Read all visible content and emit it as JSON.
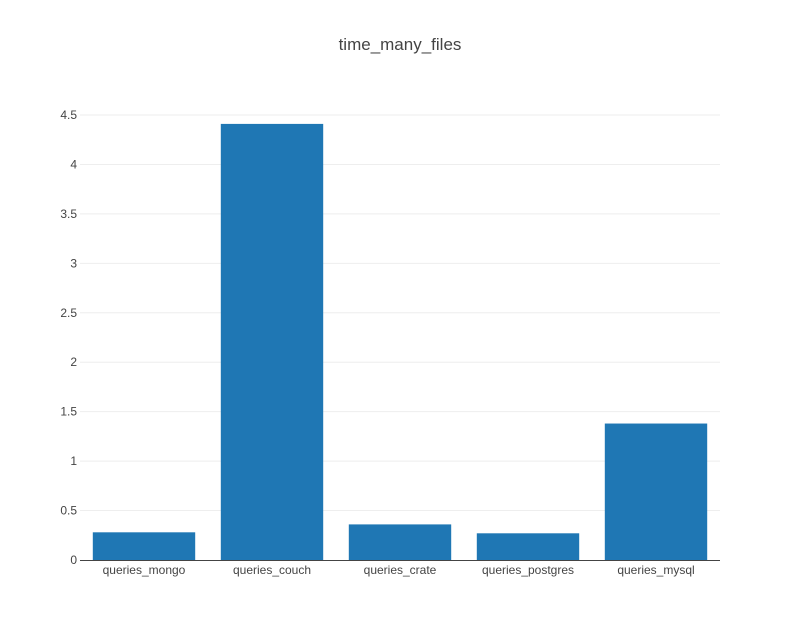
{
  "chart_data": {
    "type": "bar",
    "title": "time_many_files",
    "categories": [
      "queries_mongo",
      "queries_couch",
      "queries_crate",
      "queries_postgres",
      "queries_mysql"
    ],
    "values": [
      0.28,
      4.41,
      0.36,
      0.27,
      1.38
    ],
    "ylim": [
      0,
      4.5
    ],
    "yticks": [
      "0",
      "0.5",
      "1",
      "1.5",
      "2",
      "2.5",
      "3",
      "3.5",
      "4",
      "4.5"
    ],
    "grid": true,
    "bar_color": "#1f77b4"
  }
}
